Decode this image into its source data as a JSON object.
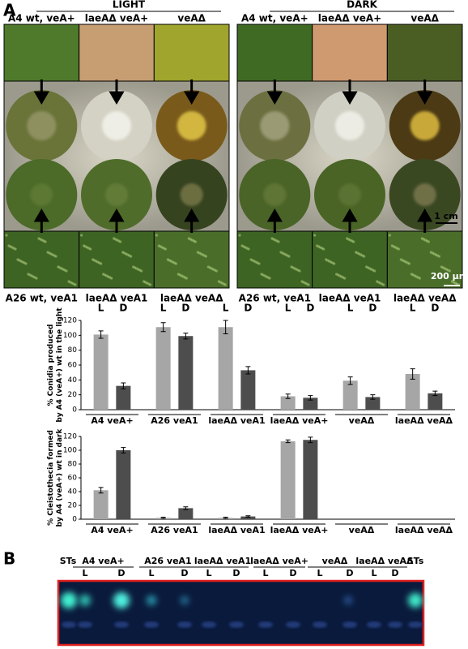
{
  "figure": {
    "panel_a_label": "A",
    "panel_b_label": "B",
    "light_label": "LIGHT",
    "dark_label": "DARK",
    "top_strains": [
      "A4 wt, veA+",
      "laeAΔ veA+",
      "veAΔ"
    ],
    "bottom_strains": [
      "A26 wt, veA1",
      "laeAΔ veA1",
      "laeAΔ veAΔ"
    ],
    "scale_plate": "1 cm",
    "scale_micro": "200 µm"
  },
  "chart_data": [
    {
      "type": "bar",
      "y_label": [
        "% Conidia produced",
        "by A4 (veA+) wt in the light"
      ],
      "categories": [
        "A4 veA+",
        "A26 veA1",
        "laeAΔ veA1",
        "laeAΔ veA+",
        "veAΔ",
        "laeAΔ veAΔ"
      ],
      "series": [
        {
          "name": "L",
          "color": "#a6a6a6",
          "values": [
            101,
            111,
            111,
            18,
            39,
            48
          ],
          "errors": [
            5,
            6,
            9,
            3,
            5,
            7
          ]
        },
        {
          "name": "D",
          "color": "#4d4d4d",
          "values": [
            32,
            99,
            53,
            16,
            17,
            22
          ],
          "errors": [
            4,
            4,
            5,
            3,
            3,
            3
          ]
        }
      ],
      "ylim": [
        0,
        120
      ],
      "yticks": [
        0,
        20,
        40,
        60,
        80,
        100,
        120
      ]
    },
    {
      "type": "bar",
      "y_label": [
        "% Cleistothecia formed",
        "by A4 (veA+) wt in dark"
      ],
      "categories": [
        "A4 veA+",
        "A26 veA1",
        "laeAΔ veA1",
        "laeAΔ veA+",
        "veAΔ",
        "laeAΔ veAΔ"
      ],
      "series": [
        {
          "name": "L",
          "color": "#a6a6a6",
          "values": [
            42,
            2,
            2,
            113,
            0,
            0
          ],
          "errors": [
            4,
            1,
            1,
            2,
            0,
            0
          ]
        },
        {
          "name": "D",
          "color": "#4d4d4d",
          "values": [
            100,
            16,
            4,
            115,
            0,
            0
          ],
          "errors": [
            4,
            2,
            1,
            4,
            0,
            0
          ]
        }
      ],
      "ylim": [
        0,
        120
      ],
      "yticks": [
        0,
        20,
        40,
        60,
        80,
        100,
        120
      ]
    }
  ],
  "tlc": {
    "standards": "STs",
    "lanes": [
      "A4 veA+",
      "A26 veA1",
      "laeAΔ veA1",
      "laeAΔ veA+",
      "veAΔ",
      "laeAΔ veAΔ"
    ],
    "conditions": [
      "L",
      "D"
    ]
  }
}
